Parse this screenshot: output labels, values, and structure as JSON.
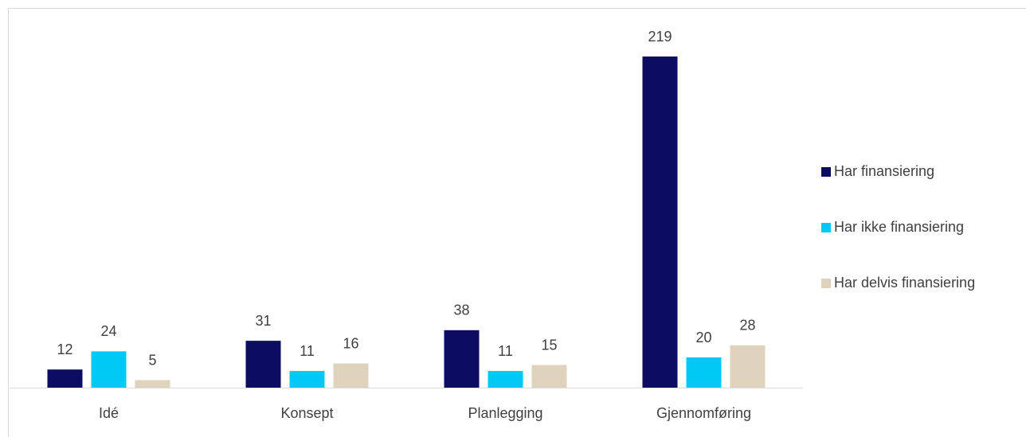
{
  "chart_data": {
    "type": "bar",
    "categories": [
      "Idé",
      "Konsept",
      "Planlegging",
      "Gjennomføring"
    ],
    "series": [
      {
        "name": "Har finansiering",
        "color": "#0c0c60",
        "values": [
          12,
          31,
          38,
          219
        ]
      },
      {
        "name": "Har ikke finansiering",
        "color": "#00c9f7",
        "values": [
          24,
          11,
          11,
          20
        ]
      },
      {
        "name": "Har delvis finansiering",
        "color": "#e0d3bd",
        "values": [
          5,
          16,
          15,
          28
        ]
      }
    ],
    "legend": "right"
  }
}
